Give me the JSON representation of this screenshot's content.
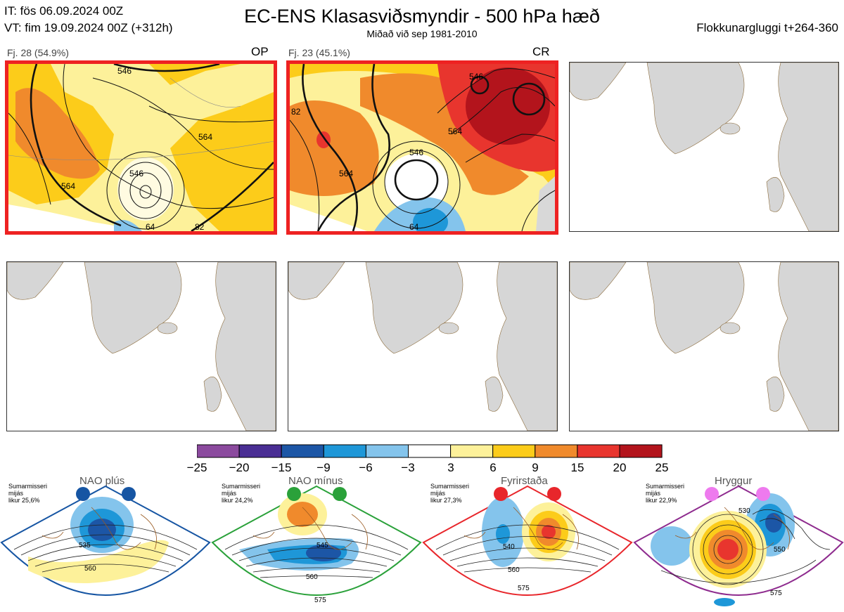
{
  "header": {
    "it": "IT: fös 06.09.2024 00Z",
    "vt": "VT: fim 19.09.2024 00Z  (+312h)",
    "title": "EC-ENS Klasasviðsmyndir - 500 hPa hæð",
    "subtitle": "Miðað við sep 1981-2010",
    "window": "Flokkunargluggi t+264-360"
  },
  "panels": [
    {
      "label": "Fj. 28 (54.9%)",
      "code": "OP",
      "contours": [
        "546",
        "564",
        "546",
        "564",
        "82",
        "64"
      ]
    },
    {
      "label": "Fj. 23 (45.1%)",
      "code": "CR",
      "contours": [
        "546",
        "546",
        "564",
        "564",
        "82",
        "64"
      ]
    },
    {
      "label": "",
      "code": ""
    },
    {
      "label": "",
      "code": ""
    },
    {
      "label": "",
      "code": ""
    },
    {
      "label": "",
      "code": ""
    }
  ],
  "colorbar": {
    "ticks": [
      "−25",
      "−20",
      "−15",
      "−9",
      "−6",
      "−3",
      "3",
      "6",
      "9",
      "15",
      "20",
      "25"
    ],
    "colors": [
      "#8b4a9e",
      "#4a2e94",
      "#1c56a6",
      "#1e97d8",
      "#84c4ec",
      "#ffffff",
      "#fdf19a",
      "#fccc1a",
      "#f08a2c",
      "#e8352e",
      "#b3141c"
    ]
  },
  "regimes": [
    {
      "name": "NAO plús",
      "season": "Sumarmisseri",
      "label": "mijás",
      "prob": "likur 25,6%",
      "color": "#1655a3",
      "dot_color": "#1655a3",
      "contours": [
        "535",
        "560"
      ]
    },
    {
      "name": "NAO mínus",
      "season": "Sumarmisseri",
      "label": "mijás",
      "prob": "likur 24,2%",
      "color": "#2aa13a",
      "dot_color": "#2aa13a",
      "contours": [
        "545",
        "560",
        "575"
      ]
    },
    {
      "name": "Fyrirstaða",
      "season": "Sumarmisseri",
      "label": "mijás",
      "prob": "likur 27,3%",
      "color": "#e8262b",
      "dot_color": "#e8262b",
      "contours": [
        "540",
        "560",
        "575"
      ]
    },
    {
      "name": "Hryggur",
      "season": "Sumarmisseri",
      "label": "mijás",
      "prob": "likur 22,9%",
      "color": "#8e2b8e",
      "dot_color": "#ee7aee",
      "contours": [
        "530",
        "550",
        "575"
      ]
    }
  ]
}
